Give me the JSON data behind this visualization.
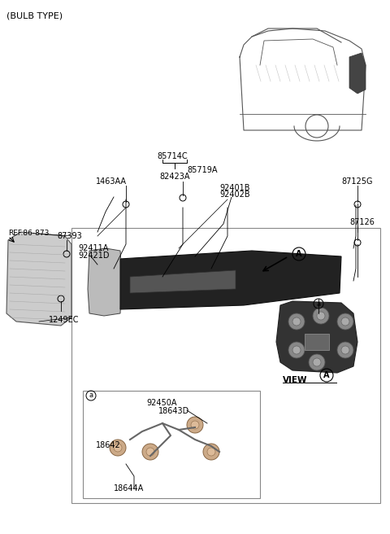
{
  "title": "(BULB TYPE)",
  "background_color": "#ffffff",
  "text_color": "#000000",
  "fig_width": 4.8,
  "fig_height": 6.56,
  "dpi": 100,
  "labels": {
    "bulb_type": "(BULB TYPE)",
    "ref": "REF.86-873",
    "p87393": "87393",
    "p1249EC": "1249EC",
    "p1463AA": "1463AA",
    "p85714C": "85714C",
    "p85719A": "85719A",
    "p82423A": "82423A",
    "p92401B": "92401B",
    "p92402B": "92402B",
    "p87125G": "87125G",
    "p87126": "87126",
    "p92411A": "92411A",
    "p92421D": "92421D",
    "p92450A": "92450A",
    "p18643D": "18643D",
    "p18642": "18642",
    "p18644A": "18644A",
    "view_a": "VIEW",
    "circle_A": "A",
    "small_a": "a"
  }
}
